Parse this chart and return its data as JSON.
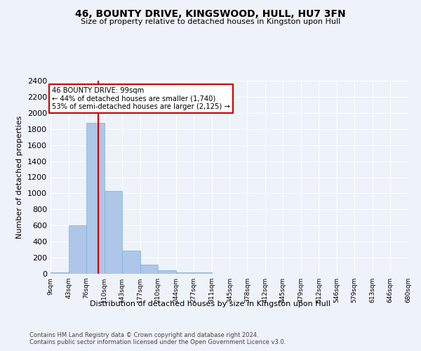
{
  "title": "46, BOUNTY DRIVE, KINGSWOOD, HULL, HU7 3FN",
  "subtitle": "Size of property relative to detached houses in Kingston upon Hull",
  "xlabel_dist": "Distribution of detached houses by size in Kingston upon Hull",
  "ylabel": "Number of detached properties",
  "bin_edges": [
    9,
    43,
    76,
    110,
    143,
    177,
    210,
    244,
    277,
    311,
    345,
    378,
    412,
    445,
    479,
    512,
    546,
    579,
    613,
    646,
    680
  ],
  "bar_heights": [
    20,
    600,
    1880,
    1030,
    290,
    115,
    40,
    20,
    15,
    0,
    0,
    0,
    0,
    0,
    0,
    0,
    0,
    0,
    0,
    0
  ],
  "bar_color": "#aec6e8",
  "bar_edge_color": "#7aafd4",
  "property_size": 99,
  "vline_color": "#cc0000",
  "annotation_text": "46 BOUNTY DRIVE: 99sqm\n← 44% of detached houses are smaller (1,740)\n53% of semi-detached houses are larger (2,125) →",
  "annotation_box_color": "#ffffff",
  "annotation_box_edge": "#cc0000",
  "ylim": [
    0,
    2400
  ],
  "yticks": [
    0,
    200,
    400,
    600,
    800,
    1000,
    1200,
    1400,
    1600,
    1800,
    2000,
    2200,
    2400
  ],
  "background_color": "#eef2f9",
  "grid_color": "#ffffff",
  "footer_line1": "Contains HM Land Registry data © Crown copyright and database right 2024.",
  "footer_line2": "Contains public sector information licensed under the Open Government Licence v3.0."
}
